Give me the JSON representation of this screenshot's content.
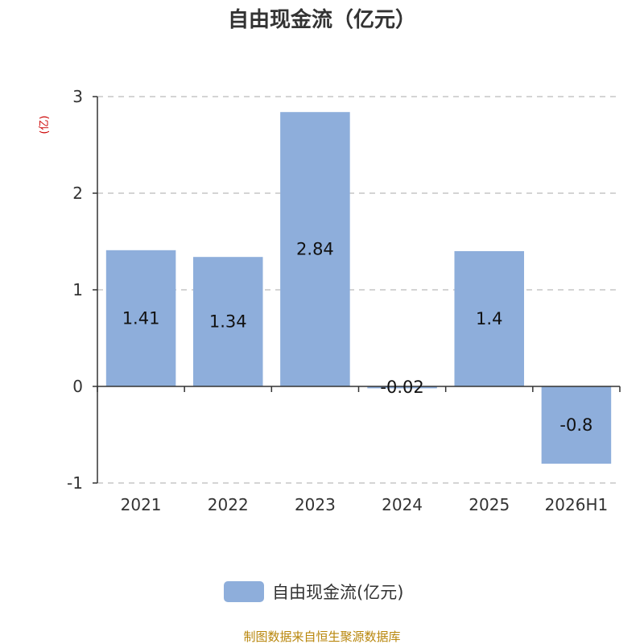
{
  "colors": {
    "bar": "#8eaedb",
    "axis": "#333333",
    "grid": "#bbbbbb",
    "unit_label": "#cc0000",
    "source": "#b8860b"
  },
  "chart_data": {
    "type": "bar",
    "title": "自由现金流（亿元）",
    "ylabel": "(亿)",
    "categories": [
      "2021",
      "2022",
      "2023",
      "2024",
      "2025",
      "2026H1"
    ],
    "series": [
      {
        "name": "自由现金流(亿元)",
        "values": [
          1.41,
          1.34,
          2.84,
          -0.02,
          1.4,
          -0.8
        ]
      }
    ],
    "data_labels": [
      "1.41",
      "1.34",
      "2.84",
      "-0.02",
      "1.4",
      "-0.8"
    ],
    "ylim": [
      -1,
      3
    ],
    "yticks": [
      3,
      2,
      1,
      0,
      -1
    ],
    "grid": true,
    "legend_position": "bottom"
  },
  "source": "制图数据来自恒生聚源数据库"
}
